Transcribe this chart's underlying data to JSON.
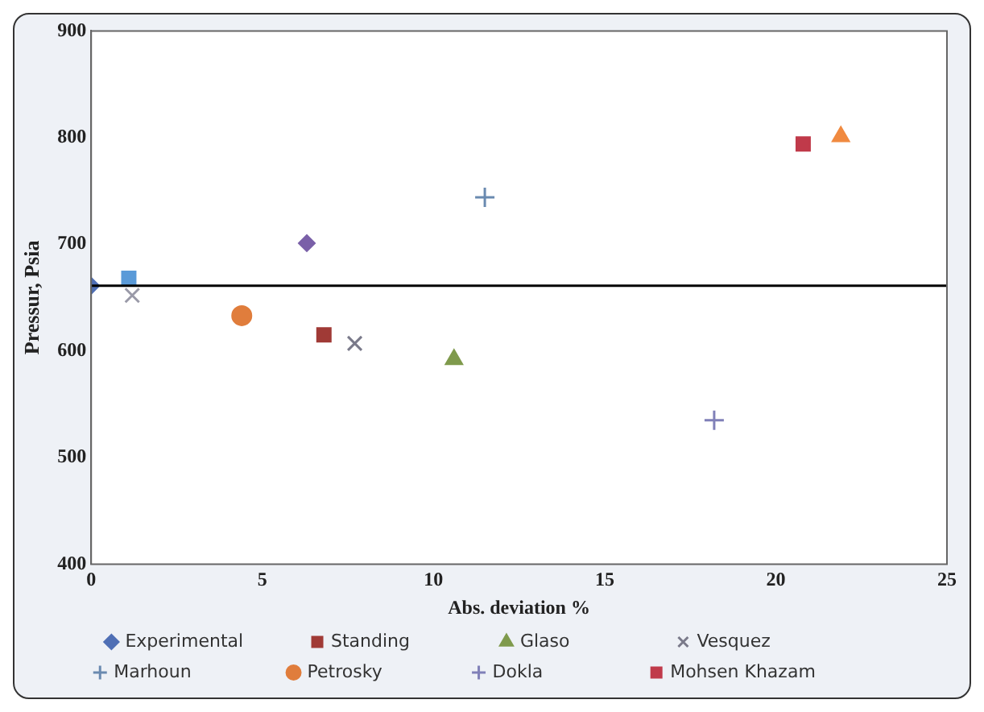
{
  "chart_data": {
    "type": "scatter",
    "xlabel": "Abs. deviation %",
    "ylabel": "Pressur, Psia",
    "xlim": [
      0,
      25
    ],
    "xticks": [
      0,
      5,
      10,
      15,
      20,
      25
    ],
    "ylim": [
      400,
      900
    ],
    "yticks": [
      400,
      500,
      600,
      700,
      800,
      900
    ],
    "grid": false,
    "legend": "bottom",
    "ref_lines": [
      {
        "axis": "y",
        "value": 661,
        "color": "#000000",
        "line_style": "solid"
      }
    ],
    "series": [
      {
        "name": "Experimental",
        "color": "#4f6fb5",
        "marker": "diamond",
        "x": [
          0
        ],
        "values": [
          661
        ]
      },
      {
        "name": "Standing",
        "color": "#a03a36",
        "marker": "square",
        "x": [
          6.8
        ],
        "values": [
          615
        ]
      },
      {
        "name": "Glaso",
        "color": "#7f9a4c",
        "marker": "triangle",
        "x": [
          10.6
        ],
        "values": [
          592
        ]
      },
      {
        "name": "Vesquez",
        "color": "#7a7a8a",
        "marker": "x",
        "x": [
          7.7
        ],
        "values": [
          607
        ]
      },
      {
        "name": "Marhoun",
        "color": "#6a8ab0",
        "marker": "cross",
        "x": [
          11.5
        ],
        "values": [
          744
        ]
      },
      {
        "name": "Petrosky",
        "color": "#e07d3c",
        "marker": "circle",
        "x": [
          4.4
        ],
        "values": [
          633
        ]
      },
      {
        "name": "Dokla",
        "color": "#8080b8",
        "marker": "cross",
        "x": [
          18.2
        ],
        "values": [
          535
        ]
      },
      {
        "name": "Mohsen Khazam",
        "color": "#c03a4a",
        "marker": "square",
        "x": [
          20.8
        ],
        "values": [
          794
        ]
      },
      {
        "color": "#7a60a8",
        "marker": "diamond",
        "x": [
          6.3
        ],
        "values": [
          701
        ]
      },
      {
        "color": "#5a9ad8",
        "marker": "square",
        "x": [
          1.1
        ],
        "values": [
          668
        ]
      },
      {
        "color": "#9a9aa8",
        "marker": "x",
        "x": [
          1.2
        ],
        "values": [
          652
        ]
      },
      {
        "color": "#f08a40",
        "marker": "triangle",
        "x": [
          21.9
        ],
        "values": [
          801
        ]
      }
    ]
  }
}
